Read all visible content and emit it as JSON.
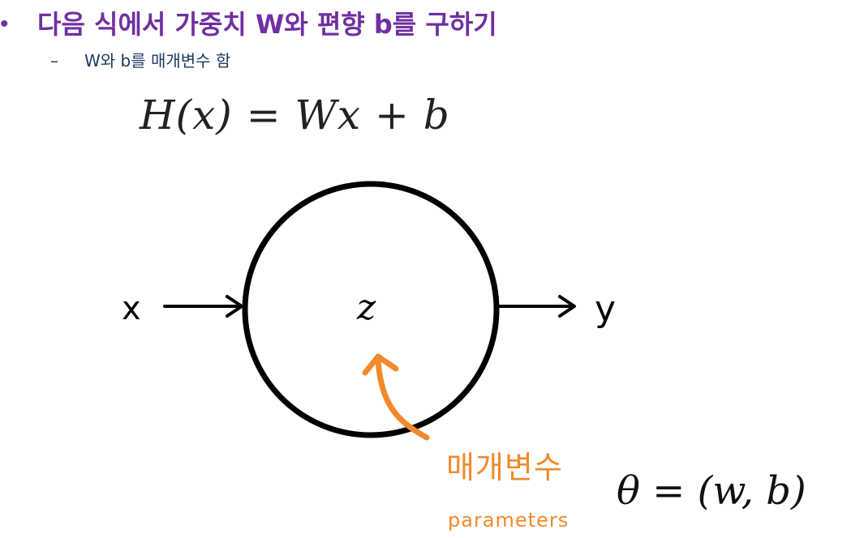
{
  "slide": {
    "bullet": "•",
    "heading": "다음 식에서 가중치 W와 편향 b를 구하기",
    "sub_dash": "–",
    "sub_text": "W와 b를 매개변수 함",
    "equation": "H(x) = Wx + b"
  },
  "diagram": {
    "input_label": "x",
    "node_label": "z",
    "output_label": "y",
    "annotation_korean": "매개변수",
    "annotation_english": "parameters",
    "theta_formula": "θ = (w, b)",
    "colors": {
      "line": "#000000",
      "annotation": "#f08a2c",
      "heading": "#7030a0"
    }
  }
}
